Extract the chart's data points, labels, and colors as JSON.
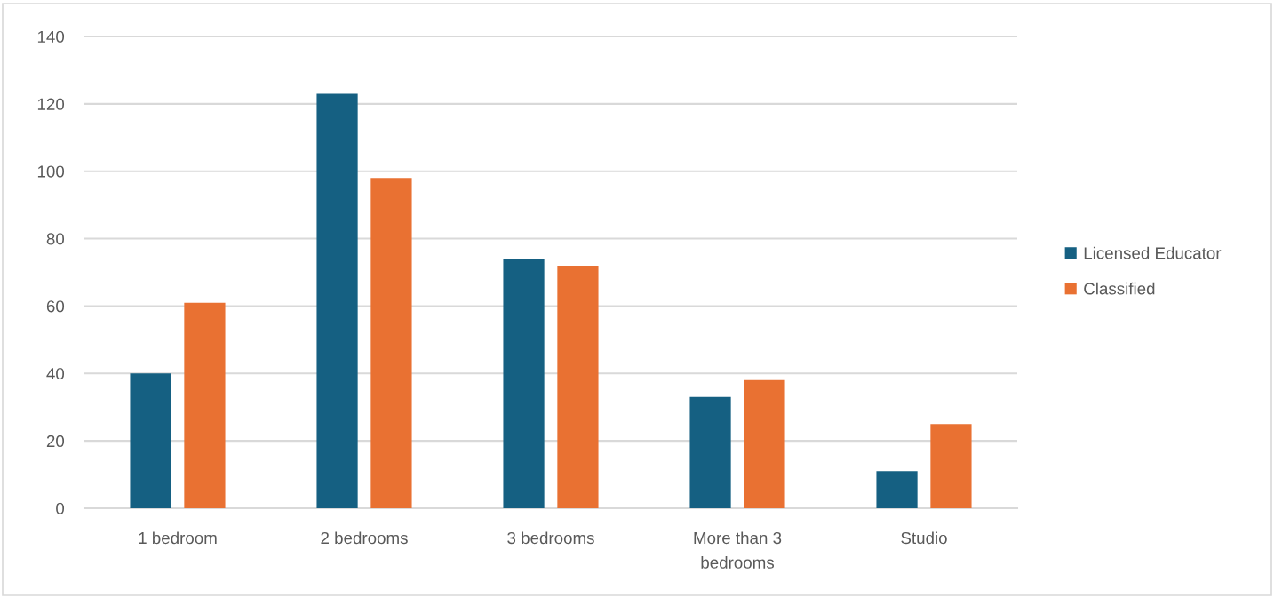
{
  "chart_data": {
    "type": "bar",
    "categories": [
      "1 bedroom",
      "2 bedrooms",
      "3 bedrooms",
      "More than 3\nbedrooms",
      "Studio"
    ],
    "series": [
      {
        "name": "Licensed Educator",
        "color": "#156082",
        "values": [
          40,
          123,
          74,
          33,
          11
        ]
      },
      {
        "name": "Classified",
        "color": "#e97132",
        "values": [
          61,
          98,
          72,
          38,
          25
        ]
      }
    ],
    "ylim": [
      0,
      140
    ],
    "yticks": [
      0,
      20,
      40,
      60,
      80,
      100,
      120,
      140
    ],
    "grid": "y",
    "legend": "right"
  }
}
